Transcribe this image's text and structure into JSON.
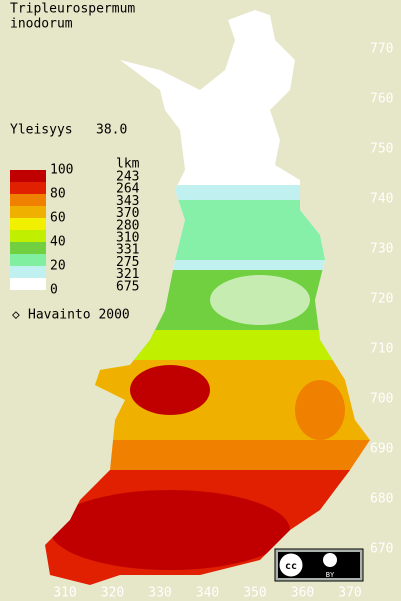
{
  "title": [
    "Tripleurospermum",
    "inodorum"
  ],
  "frequency": {
    "label": "Yleisyys",
    "value": "38.0"
  },
  "legend": {
    "scale": [
      "100",
      "80",
      "60",
      "40",
      "20",
      "0"
    ],
    "count_header": "lkm",
    "counts": [
      "243",
      "264",
      "343",
      "370",
      "280",
      "310",
      "331",
      "275",
      "321",
      "675"
    ]
  },
  "observation": "Havainto 2000",
  "y_axis": [
    "770",
    "760",
    "750",
    "740",
    "730",
    "720",
    "710",
    "700",
    "690",
    "680",
    "670"
  ],
  "x_axis": [
    "310",
    "320",
    "330",
    "340",
    "350",
    "360",
    "370"
  ],
  "license": [
    "cc",
    "BY"
  ]
}
